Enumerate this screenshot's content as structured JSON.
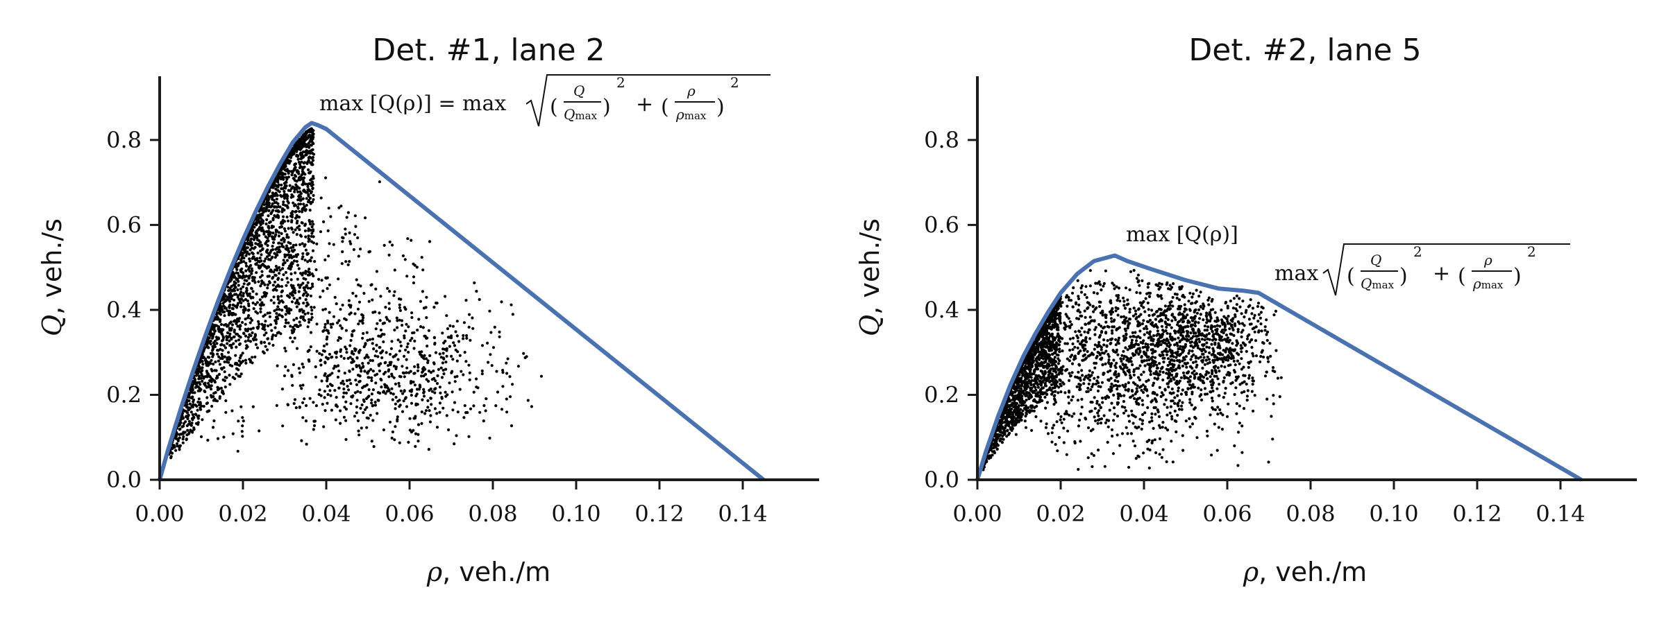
{
  "chart_data": [
    {
      "type": "scatter",
      "title": "Det. #1, lane 2",
      "xlabel_symbol": "ρ",
      "xlabel_unit": ", veh./m",
      "ylabel_symbol": "Q",
      "ylabel_unit": ", veh./s",
      "xlim": [
        0.0,
        0.15
      ],
      "ylim": [
        0.0,
        0.95
      ],
      "xticks": [
        "0.00",
        "0.02",
        "0.04",
        "0.06",
        "0.08",
        "0.10",
        "0.12",
        "0.14"
      ],
      "yticks": [
        "0.0",
        "0.2",
        "0.4",
        "0.6",
        "0.8"
      ],
      "grid": false,
      "annotation": {
        "parts": [
          "max [Q(ρ)] = max",
          "Q",
          "Q",
          "max",
          "ρ",
          "ρ",
          "max",
          "2",
          "2",
          "+"
        ]
      },
      "envelope": {
        "x": [
          0.0,
          0.002,
          0.005,
          0.008,
          0.011,
          0.014,
          0.017,
          0.02,
          0.023,
          0.026,
          0.029,
          0.032,
          0.035,
          0.0365,
          0.038,
          0.04,
          0.145
        ],
        "y": [
          0.0,
          0.07,
          0.165,
          0.255,
          0.34,
          0.42,
          0.495,
          0.565,
          0.63,
          0.69,
          0.745,
          0.795,
          0.83,
          0.84,
          0.835,
          0.826,
          0.0
        ]
      },
      "scatter_model": {
        "clusters": [
          {
            "type": "band",
            "n": 2400,
            "xmin": 0.002,
            "xmax": 0.037,
            "lower_frac": 0.55,
            "skew": 2.3
          },
          {
            "type": "blob",
            "n": 700,
            "cx": 0.055,
            "cy": 0.26,
            "sx": 0.015,
            "sy": 0.085,
            "xmin": 0.028,
            "xmax": 0.092,
            "ymin": 0.07,
            "ymax": 0.65
          },
          {
            "type": "blob",
            "n": 170,
            "cx": 0.045,
            "cy": 0.45,
            "sx": 0.01,
            "sy": 0.11,
            "xmin": 0.028,
            "xmax": 0.07,
            "ymin": 0.05,
            "ymax": 0.78
          },
          {
            "type": "blob",
            "n": 25,
            "cx": 0.015,
            "cy": 0.12,
            "sx": 0.004,
            "sy": 0.04,
            "xmin": 0.005,
            "xmax": 0.025,
            "ymin": 0.05,
            "ymax": 0.25
          }
        ]
      }
    },
    {
      "type": "scatter",
      "title": "Det. #2, lane 5",
      "xlabel_symbol": "ρ",
      "xlabel_unit": ", veh./m",
      "ylabel_symbol": "Q",
      "ylabel_unit": ", veh./s",
      "xlim": [
        0.0,
        0.15
      ],
      "ylim": [
        0.0,
        0.95
      ],
      "xticks": [
        "0.00",
        "0.02",
        "0.04",
        "0.06",
        "0.08",
        "0.10",
        "0.12",
        "0.14"
      ],
      "yticks": [
        "0.0",
        "0.2",
        "0.4",
        "0.6",
        "0.8"
      ],
      "grid": false,
      "annotation1": "max [Q(ρ)]",
      "annotation2": {
        "parts": [
          "max",
          "Q",
          "Q",
          "max",
          "ρ",
          "ρ",
          "max",
          "2",
          "2",
          "+"
        ]
      },
      "envelope": {
        "x": [
          0.0,
          0.002,
          0.005,
          0.008,
          0.011,
          0.014,
          0.017,
          0.02,
          0.024,
          0.028,
          0.033,
          0.036,
          0.042,
          0.05,
          0.058,
          0.064,
          0.0675,
          0.145
        ],
        "y": [
          0.0,
          0.065,
          0.15,
          0.225,
          0.29,
          0.345,
          0.395,
          0.44,
          0.485,
          0.515,
          0.528,
          0.515,
          0.495,
          0.47,
          0.45,
          0.445,
          0.44,
          0.0
        ]
      },
      "scatter_model": {
        "clusters": [
          {
            "type": "band",
            "n": 1500,
            "xmin": 0.001,
            "xmax": 0.02,
            "lower_frac": 0.5,
            "skew": 2.0
          },
          {
            "type": "blob",
            "n": 1500,
            "cx": 0.038,
            "cy": 0.3,
            "sx": 0.016,
            "sy": 0.11,
            "xmin": 0.004,
            "xmax": 0.073,
            "ymin": 0.02,
            "ymax": 0.55
          },
          {
            "type": "blob",
            "n": 400,
            "cx": 0.055,
            "cy": 0.33,
            "sx": 0.008,
            "sy": 0.06,
            "xmin": 0.04,
            "xmax": 0.072,
            "ymin": 0.1,
            "ymax": 0.48
          }
        ]
      }
    }
  ]
}
